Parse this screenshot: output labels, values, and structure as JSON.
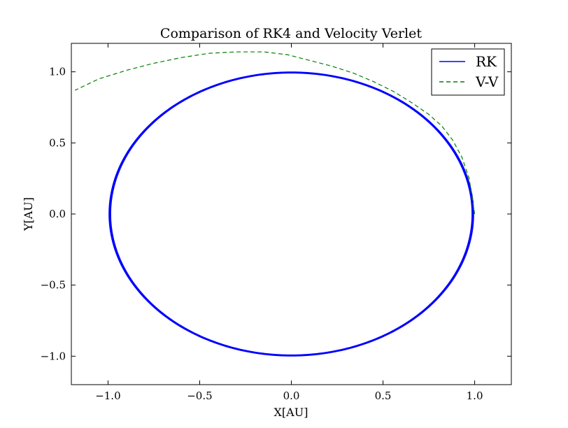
{
  "chart_data": {
    "type": "line",
    "title": "Comparison of RK4 and Velocity Verlet",
    "xlabel": "X[AU]",
    "ylabel": "Y[AU]",
    "xlim": [
      -1.2,
      1.2
    ],
    "ylim": [
      -1.2,
      1.2
    ],
    "xticks": [
      -1.0,
      -0.5,
      0.0,
      0.5,
      1.0
    ],
    "xtick_labels": [
      "−1.0",
      "−0.5",
      "0.0",
      "0.5",
      "1.0"
    ],
    "yticks": [
      -1.0,
      -0.5,
      0.0,
      0.5,
      1.0
    ],
    "ytick_labels": [
      "−1.0",
      "−0.5",
      "0.0",
      "0.5",
      "1.0"
    ],
    "grid": false,
    "legend": "top-right",
    "series": [
      {
        "name": "RK",
        "color": "#0000ff",
        "style": "solid",
        "orbit": {
          "center_x": 0.0,
          "center_y": 0.0,
          "radius_x": 0.99,
          "radius_y": 0.995
        }
      },
      {
        "name": "V-V",
        "color": "#008000",
        "style": "dashed",
        "x": [
          1.0,
          0.97,
          0.93,
          0.88,
          0.82,
          0.75,
          0.66,
          0.56,
          0.45,
          0.34,
          0.22,
          0.1,
          -0.02,
          -0.15,
          -0.3,
          -0.45,
          -0.6,
          -0.75,
          -0.9,
          -1.05,
          -1.18
        ],
        "y": [
          0.0,
          0.25,
          0.4,
          0.52,
          0.62,
          0.7,
          0.78,
          0.86,
          0.93,
          0.99,
          1.04,
          1.08,
          1.12,
          1.14,
          1.14,
          1.13,
          1.1,
          1.06,
          1.01,
          0.95,
          0.87
        ]
      }
    ]
  }
}
